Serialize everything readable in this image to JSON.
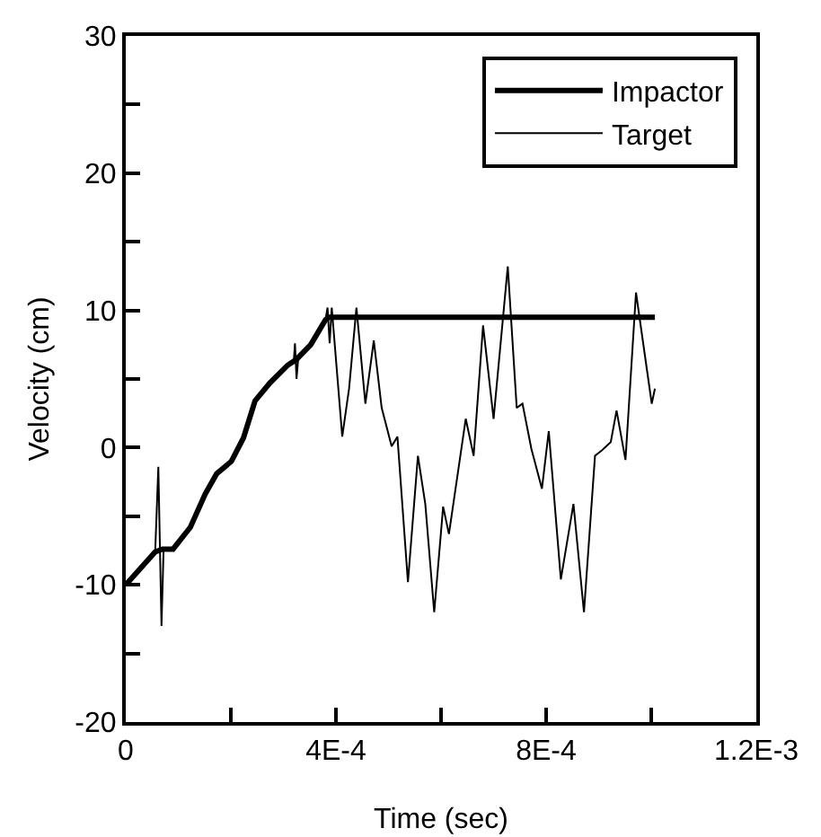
{
  "chart_data": {
    "type": "line",
    "xlabel": "Time (sec)",
    "ylabel": "Velocity (cm)",
    "xlim": [
      0,
      0.0012
    ],
    "ylim": [
      -20,
      30
    ],
    "xticks": [
      {
        "value": 0,
        "label": "0"
      },
      {
        "value": 0.0002,
        "label": null
      },
      {
        "value": 0.0004,
        "label": "4E-4"
      },
      {
        "value": 0.0006,
        "label": null
      },
      {
        "value": 0.0008,
        "label": "8E-4"
      },
      {
        "value": 0.001,
        "label": null
      },
      {
        "value": 0.0012,
        "label": "1.2E-3"
      }
    ],
    "yticks": [
      -20,
      {
        "value": -15,
        "label": null
      },
      -10,
      {
        "value": -5,
        "label": null
      },
      0,
      {
        "value": 5,
        "label": null
      },
      10,
      {
        "value": 15,
        "label": null
      },
      20,
      {
        "value": 25,
        "label": null
      },
      30
    ],
    "grid": false,
    "legend": "top right",
    "marker": "none",
    "series": [
      {
        "name": "Impactor",
        "color": "#000000",
        "line_style": "solid",
        "x": [
          0,
          5.6e-05,
          7e-05,
          9e-05,
          0.000123,
          0.000151,
          0.000173,
          0.000201,
          0.000224,
          0.000246,
          0.000274,
          0.000308,
          0.000324,
          0.000352,
          0.00038,
          0.000386,
          0.001007
        ],
        "values": [
          -10,
          -7.6,
          -7.4,
          -7.4,
          -5.8,
          -3.4,
          -1.9,
          -1.0,
          0.7,
          3.4,
          4.7,
          6.0,
          6.4,
          7.5,
          9.3,
          9.5,
          9.5
        ]
      },
      {
        "name": "Target",
        "color": "#000000",
        "line_style": "solid",
        "x": [
          0,
          5.6e-05,
          6.2e-05,
          6.8e-05,
          7.2e-05,
          9e-05,
          0.000123,
          0.000151,
          0.000173,
          0.000201,
          0.000224,
          0.000246,
          0.000274,
          0.000308,
          0.00032,
          0.000322,
          0.000325,
          0.000328,
          0.000352,
          0.00038,
          0.000384,
          0.000388,
          0.000392,
          0.000412,
          0.000425,
          0.000439,
          0.000456,
          0.000472,
          0.000487,
          0.000506,
          0.000517,
          0.000537,
          0.000556,
          0.00057,
          0.000587,
          0.000604,
          0.000615,
          0.000647,
          0.000662,
          0.00068,
          0.0007,
          0.000727,
          0.000744,
          0.000755,
          0.000772,
          0.000792,
          0.000805,
          0.000828,
          0.000852,
          0.000872,
          0.000893,
          0.000906,
          0.000923,
          0.000934,
          0.000951,
          0.000971,
          0.001001,
          0.001007
        ],
        "values": [
          -10,
          -7.6,
          -1.4,
          -13,
          -7.4,
          -7.4,
          -5.8,
          -3.4,
          -1.9,
          -1.0,
          0.7,
          3.4,
          4.7,
          6.0,
          6.4,
          7.6,
          5.0,
          6.4,
          7.5,
          9.3,
          10.2,
          7.6,
          10.2,
          0.8,
          4.3,
          10.2,
          3.2,
          7.8,
          2.9,
          0.1,
          0.8,
          -9.8,
          -0.6,
          -4.1,
          -12.0,
          -4.3,
          -6.3,
          2.1,
          -0.6,
          8.9,
          2.1,
          13.2,
          2.9,
          3.2,
          -0.1,
          -3.0,
          1.2,
          -9.6,
          -4.1,
          -12.0,
          -0.6,
          -0.2,
          0.4,
          2.7,
          -0.9,
          11.3,
          3.2,
          4.3
        ]
      }
    ]
  }
}
